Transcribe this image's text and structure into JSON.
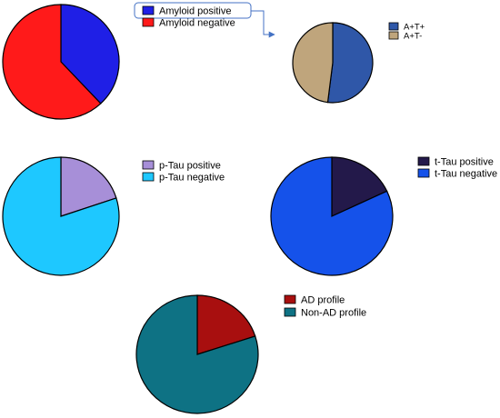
{
  "chart_data": [
    {
      "type": "pie",
      "id": "amyloid",
      "slices": [
        {
          "label": "Amyloid positive",
          "value": 38,
          "color": "#1f1fe6"
        },
        {
          "label": "Amyloid negative",
          "value": 62,
          "color": "#ff1a1a"
        }
      ],
      "legend": "right"
    },
    {
      "type": "pie",
      "id": "at",
      "slices": [
        {
          "label": "A+T+",
          "value": 52,
          "color": "#2f57a8"
        },
        {
          "label": "A+T-",
          "value": 48,
          "color": "#bfa57c"
        }
      ],
      "legend": "right"
    },
    {
      "type": "pie",
      "id": "ptau",
      "slices": [
        {
          "label": "p-Tau positive",
          "value": 20,
          "color": "#a78fd8"
        },
        {
          "label": "p-Tau negative",
          "value": 80,
          "color": "#1ec8ff"
        }
      ],
      "legend": "right"
    },
    {
      "type": "pie",
      "id": "ttau",
      "slices": [
        {
          "label": "t-Tau positive",
          "value": 18,
          "color": "#23194a"
        },
        {
          "label": "t-Tau negative",
          "value": 82,
          "color": "#1552ea"
        }
      ],
      "legend": "right"
    },
    {
      "type": "pie",
      "id": "ad",
      "slices": [
        {
          "label": "AD profile",
          "value": 20,
          "color": "#a80f0f"
        },
        {
          "label": "Non-AD profile",
          "value": 80,
          "color": "#0e7284"
        }
      ],
      "legend": "right"
    }
  ],
  "colors": {
    "highlight_box": "#4472c4",
    "arrow": "#4472c4",
    "outline": "#000000"
  }
}
